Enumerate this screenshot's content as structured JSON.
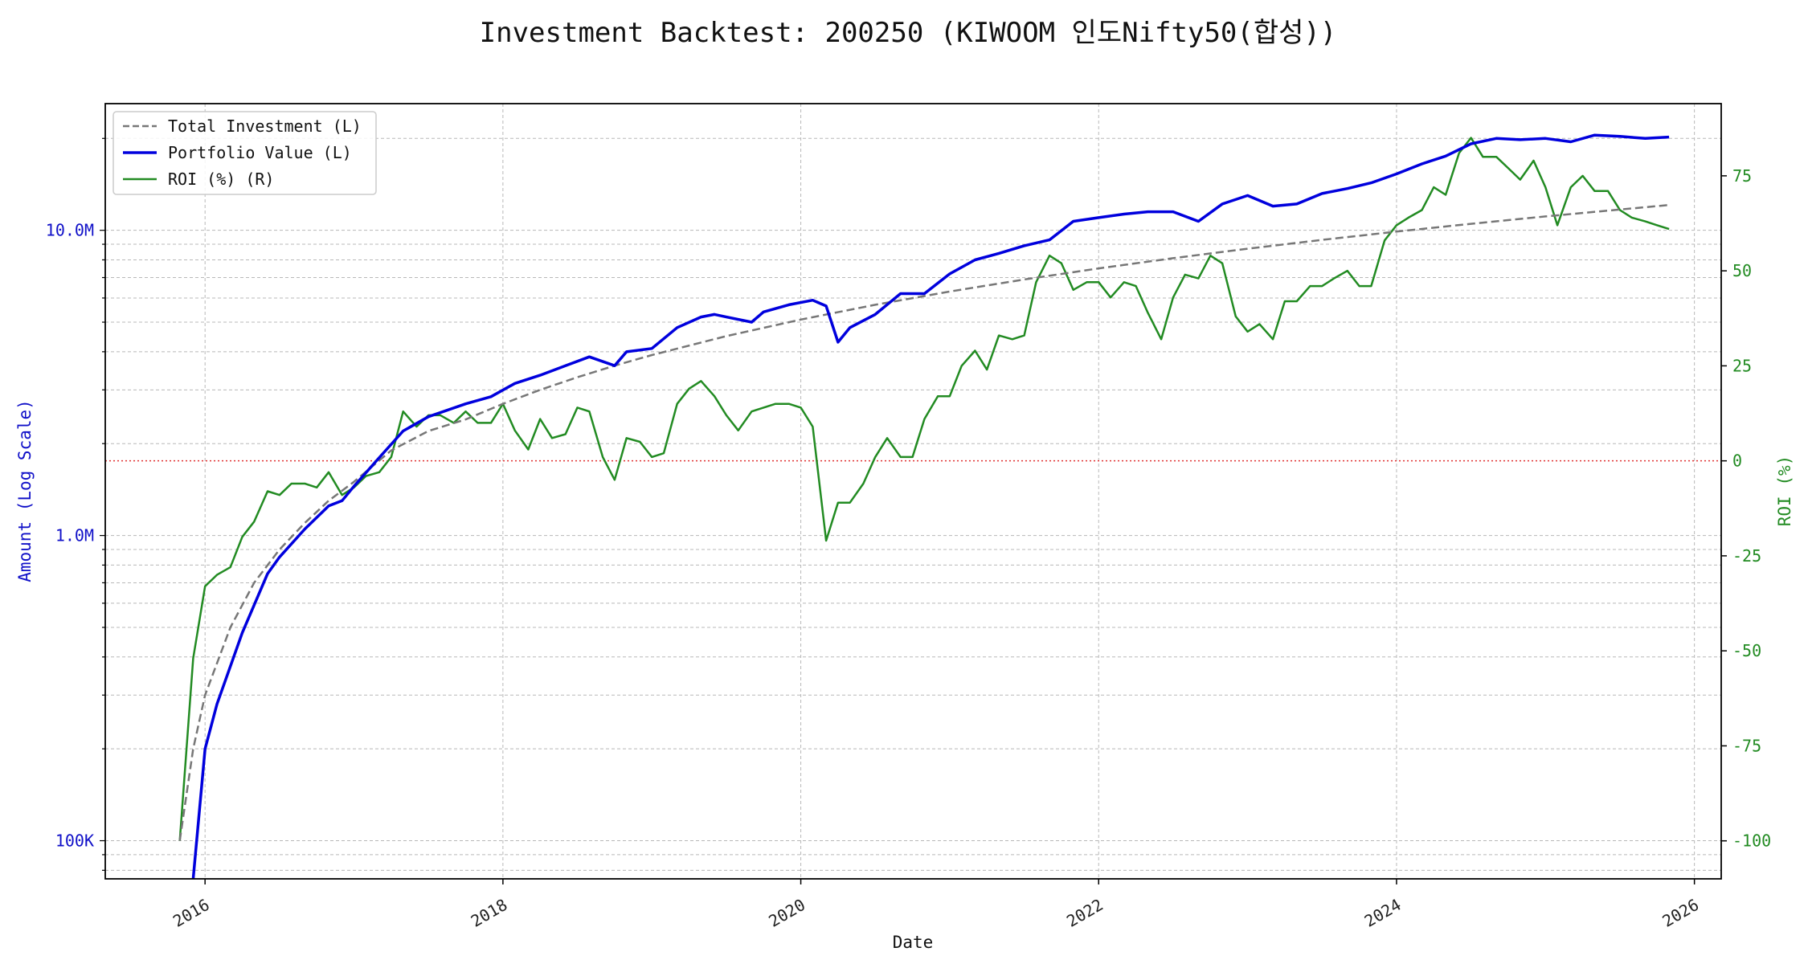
{
  "chart_data": {
    "type": "line",
    "title": "Investment Backtest: 200250 (KIWOOM 인도Nifty50(합성))",
    "xlabel": "Date",
    "ylabel_left": "Amount (Log Scale)",
    "ylabel_right": "ROI (%)",
    "y_left_scale": "log",
    "y_left_range": [
      75000,
      26000000
    ],
    "y_left_ticks": [
      {
        "value": 100000,
        "label": "100K"
      },
      {
        "value": 1000000,
        "label": "1.0M"
      },
      {
        "value": 10000000,
        "label": "10.0M"
      }
    ],
    "y_right_range": [
      -110,
      94
    ],
    "y_right_ticks": [
      -100,
      -75,
      -50,
      -25,
      0,
      25,
      50,
      75
    ],
    "x_range": [
      2015.33,
      2026.18
    ],
    "x_ticks": [
      {
        "value": 2016,
        "label": "2016"
      },
      {
        "value": 2018,
        "label": "2018"
      },
      {
        "value": 2020,
        "label": "2020"
      },
      {
        "value": 2022,
        "label": "2022"
      },
      {
        "value": 2024,
        "label": "2024"
      },
      {
        "value": 2026,
        "label": "2026"
      }
    ],
    "grid": true,
    "legend_position": "top-left",
    "zero_line": {
      "value": 0,
      "axis": "right",
      "color": "#e03030",
      "style": "dotted"
    },
    "series": [
      {
        "name": "Total Investment (L)",
        "axis": "left",
        "color": "#777777",
        "style": "dashed",
        "x": [
          2015.83,
          2015.92,
          2016.0,
          2016.17,
          2016.33,
          2016.5,
          2016.67,
          2016.83,
          2017.0,
          2017.25,
          2017.5,
          2017.75,
          2018.0,
          2018.25,
          2018.5,
          2018.75,
          2019.0,
          2019.5,
          2020.0,
          2020.5,
          2021.0,
          2021.5,
          2022.0,
          2022.5,
          2023.0,
          2023.5,
          2024.0,
          2024.5,
          2025.0,
          2025.5,
          2025.83
        ],
        "y": [
          100000,
          200000,
          300000,
          500000,
          700000,
          900000,
          1100000,
          1300000,
          1500000,
          1900000,
          2200000,
          2400000,
          2700000,
          3000000,
          3300000,
          3600000,
          3900000,
          4500000,
          5100000,
          5700000,
          6300000,
          6900000,
          7500000,
          8100000,
          8700000,
          9300000,
          9900000,
          10500000,
          11100000,
          11700000,
          12100000
        ]
      },
      {
        "name": "Portfolio Value (L)",
        "axis": "left",
        "color": "#0000dd",
        "style": "solid",
        "x": [
          2015.92,
          2016.0,
          2016.08,
          2016.25,
          2016.42,
          2016.5,
          2016.67,
          2016.83,
          2016.92,
          2017.0,
          2017.17,
          2017.33,
          2017.5,
          2017.75,
          2017.92,
          2018.08,
          2018.25,
          2018.42,
          2018.58,
          2018.75,
          2018.83,
          2019.0,
          2019.17,
          2019.33,
          2019.42,
          2019.5,
          2019.67,
          2019.75,
          2019.92,
          2020.08,
          2020.17,
          2020.25,
          2020.33,
          2020.5,
          2020.67,
          2020.83,
          2021.0,
          2021.17,
          2021.33,
          2021.5,
          2021.67,
          2021.83,
          2022.0,
          2022.17,
          2022.33,
          2022.5,
          2022.67,
          2022.83,
          2023.0,
          2023.17,
          2023.33,
          2023.5,
          2023.67,
          2023.83,
          2024.0,
          2024.17,
          2024.33,
          2024.5,
          2024.67,
          2024.83,
          2025.0,
          2025.17,
          2025.33,
          2025.5,
          2025.67,
          2025.83
        ],
        "y": [
          75000,
          200000,
          280000,
          480000,
          750000,
          850000,
          1050000,
          1250000,
          1300000,
          1450000,
          1800000,
          2200000,
          2450000,
          2700000,
          2850000,
          3150000,
          3350000,
          3600000,
          3850000,
          3600000,
          4000000,
          4100000,
          4800000,
          5200000,
          5300000,
          5200000,
          5000000,
          5400000,
          5700000,
          5900000,
          5650000,
          4300000,
          4800000,
          5300000,
          6200000,
          6200000,
          7200000,
          8000000,
          8400000,
          8900000,
          9300000,
          10700000,
          11000000,
          11300000,
          11500000,
          11500000,
          10700000,
          12200000,
          13000000,
          12000000,
          12200000,
          13200000,
          13700000,
          14300000,
          15300000,
          16500000,
          17500000,
          19200000,
          20000000,
          19800000,
          20000000,
          19500000,
          20500000,
          20300000,
          20000000,
          20200000
        ]
      },
      {
        "name": "ROI (%) (R)",
        "axis": "right",
        "color": "#228b22",
        "style": "solid",
        "x": [
          2015.83,
          2015.92,
          2016.0,
          2016.08,
          2016.17,
          2016.25,
          2016.33,
          2016.42,
          2016.5,
          2016.58,
          2016.67,
          2016.75,
          2016.83,
          2016.92,
          2017.0,
          2017.08,
          2017.17,
          2017.25,
          2017.33,
          2017.42,
          2017.5,
          2017.58,
          2017.67,
          2017.75,
          2017.83,
          2017.92,
          2018.0,
          2018.08,
          2018.17,
          2018.25,
          2018.33,
          2018.42,
          2018.5,
          2018.58,
          2018.67,
          2018.75,
          2018.83,
          2018.92,
          2019.0,
          2019.08,
          2019.17,
          2019.25,
          2019.33,
          2019.42,
          2019.5,
          2019.58,
          2019.67,
          2019.75,
          2019.83,
          2019.92,
          2020.0,
          2020.08,
          2020.17,
          2020.25,
          2020.33,
          2020.42,
          2020.5,
          2020.58,
          2020.67,
          2020.75,
          2020.83,
          2020.92,
          2021.0,
          2021.08,
          2021.17,
          2021.25,
          2021.33,
          2021.42,
          2021.5,
          2021.58,
          2021.67,
          2021.75,
          2021.83,
          2021.92,
          2022.0,
          2022.08,
          2022.17,
          2022.25,
          2022.33,
          2022.42,
          2022.5,
          2022.58,
          2022.67,
          2022.75,
          2022.83,
          2022.92,
          2023.0,
          2023.08,
          2023.17,
          2023.25,
          2023.33,
          2023.42,
          2023.5,
          2023.58,
          2023.67,
          2023.75,
          2023.83,
          2023.92,
          2024.0,
          2024.08,
          2024.17,
          2024.25,
          2024.33,
          2024.42,
          2024.5,
          2024.58,
          2024.67,
          2024.75,
          2024.83,
          2024.92,
          2025.0,
          2025.08,
          2025.17,
          2025.25,
          2025.33,
          2025.42,
          2025.5,
          2025.58,
          2025.67,
          2025.75,
          2025.83
        ],
        "y": [
          -100,
          -52,
          -33,
          -30,
          -28,
          -20,
          -16,
          -8,
          -9,
          -6,
          -6,
          -7,
          -3,
          -9,
          -7,
          -4,
          -3,
          1,
          13,
          9,
          12,
          12,
          10,
          13,
          10,
          10,
          15,
          8,
          3,
          11,
          6,
          7,
          14,
          13,
          1,
          -5,
          6,
          5,
          1,
          2,
          15,
          19,
          21,
          17,
          12,
          8,
          13,
          14,
          15,
          15,
          14,
          9,
          -21,
          -11,
          -11,
          -6,
          1,
          6,
          1,
          1,
          11,
          17,
          17,
          25,
          29,
          24,
          33,
          32,
          33,
          47,
          54,
          52,
          45,
          47,
          47,
          43,
          47,
          46,
          39,
          32,
          43,
          49,
          48,
          54,
          52,
          38,
          34,
          36,
          32,
          42,
          42,
          46,
          46,
          48,
          50,
          46,
          46,
          58,
          62,
          64,
          66,
          72,
          70,
          81,
          85,
          80,
          80,
          77,
          74,
          79,
          72,
          62,
          72,
          75,
          71,
          71,
          66,
          64,
          63,
          62,
          61
        ]
      }
    ]
  }
}
